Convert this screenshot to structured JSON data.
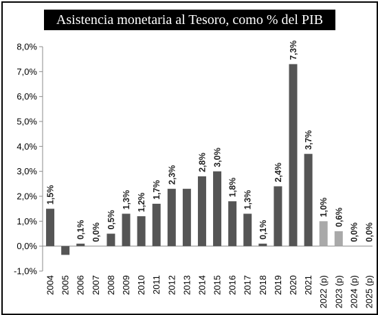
{
  "chart_data": {
    "type": "bar",
    "title": "Asistencia monetaria al Tesoro, como % del PIB",
    "categories": [
      "2004",
      "2005",
      "2006",
      "2007",
      "2008",
      "2009",
      "2010",
      "2011",
      "2012",
      "2013",
      "2014",
      "2015",
      "2016",
      "2017",
      "2018",
      "2019",
      "2020",
      "2021",
      "2022 (p)",
      "2023 (p)",
      "2024 (p)",
      "2025 (p)"
    ],
    "values": [
      1.5,
      -0.35,
      0.1,
      0.0,
      0.5,
      1.3,
      1.2,
      1.7,
      2.3,
      2.3,
      2.8,
      3.0,
      1.8,
      1.3,
      0.1,
      2.4,
      7.3,
      3.7,
      1.0,
      0.6,
      0.0,
      0.0
    ],
    "data_labels": [
      "1,5%",
      "",
      "0,1%",
      "0,0%",
      "0,5%",
      "1,3%",
      "1,2%",
      "1,7%",
      "2,3%",
      "",
      "2,8%",
      "3,0%",
      "1,8%",
      "1,3%",
      "0,1%",
      "2,4%",
      "7,3%",
      "3,7%",
      "1,0%",
      "0,6%",
      "0,0%",
      "0,0%"
    ],
    "projected": [
      false,
      false,
      false,
      false,
      false,
      false,
      false,
      false,
      false,
      false,
      false,
      false,
      false,
      false,
      false,
      false,
      false,
      false,
      true,
      true,
      true,
      true
    ],
    "y_ticks": [
      -1.0,
      0.0,
      1.0,
      2.0,
      3.0,
      4.0,
      5.0,
      6.0,
      7.0,
      8.0
    ],
    "y_tick_labels": [
      "-1,0%",
      "0,0%",
      "1,0%",
      "2,0%",
      "3,0%",
      "4,0%",
      "5,0%",
      "6,0%",
      "7,0%",
      "8,0%"
    ],
    "ylim": [
      -1.0,
      8.0
    ],
    "xlabel": "",
    "ylabel": "",
    "grid": false,
    "colors": {
      "actual": "#555555",
      "projected": "#a9a9a9",
      "title_bg": "#000000",
      "title_fg": "#ffffff"
    }
  }
}
